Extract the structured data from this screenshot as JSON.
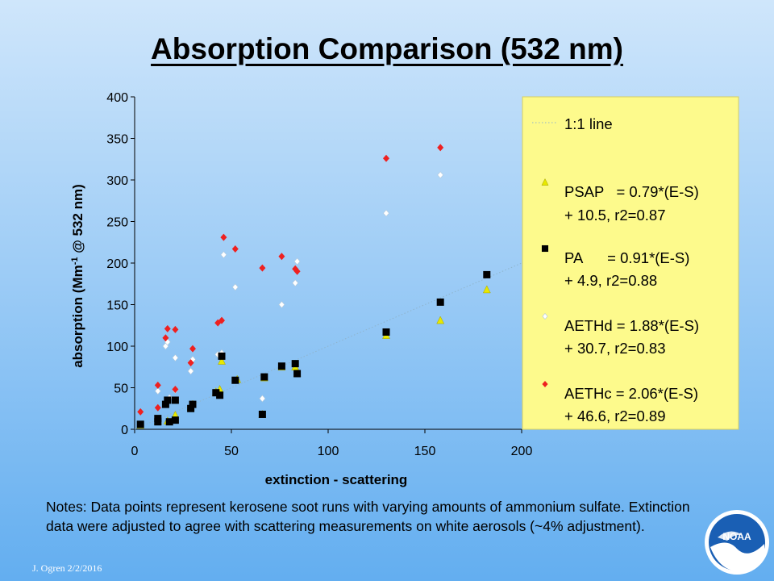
{
  "slide": {
    "title": "Absorption Comparison (532 nm)",
    "notes": "Notes:  Data points represent kerosene soot runs with varying amounts of ammonium sulfate.  Extinction data were adjusted to agree with scattering measurements on white aerosols (~4% adjustment).",
    "author": "J. Ogren  2/2/2016",
    "logo_text": "NOAA"
  },
  "chart_data": {
    "type": "scatter",
    "xlabel": "extinction - scattering",
    "ylabel_main": "absorption (Mm",
    "ylabel_sup": "-1",
    "ylabel_tail": " @ 532 nm)",
    "xlim": [
      0,
      200
    ],
    "ylim": [
      0,
      400
    ],
    "xticks": [
      "0",
      "50",
      "100",
      "150",
      "200"
    ],
    "yticks": [
      "0",
      "50",
      "100",
      "150",
      "200",
      "250",
      "300",
      "350",
      "400"
    ],
    "grid": false,
    "legend_position": "right",
    "reference_line": {
      "name": "1:1 line",
      "slope": 1,
      "intercept": 0,
      "color": "#8fb4cc"
    },
    "series": [
      {
        "name": "PSAP",
        "legend_line1": "PSAP   = 0.79*(E-S)",
        "legend_line2": "+ 10.5, r2=0.87",
        "marker": "triangle",
        "color": "#e8e800",
        "points": [
          [
            3,
            5
          ],
          [
            12,
            10
          ],
          [
            17,
            10
          ],
          [
            21,
            17
          ],
          [
            29,
            27
          ],
          [
            30,
            30
          ],
          [
            42,
            45
          ],
          [
            44,
            48
          ],
          [
            45,
            82
          ],
          [
            53,
            60
          ],
          [
            66,
            18
          ],
          [
            67,
            62
          ],
          [
            76,
            75
          ],
          [
            83,
            75
          ],
          [
            84,
            67
          ],
          [
            130,
            113
          ],
          [
            158,
            131
          ],
          [
            182,
            168
          ]
        ]
      },
      {
        "name": "PA",
        "legend_line1": "PA      = 0.91*(E-S)",
        "legend_line2": "+ 4.9, r2=0.88",
        "marker": "square",
        "color": "#000000",
        "points": [
          [
            3,
            6
          ],
          [
            12,
            9
          ],
          [
            12,
            13
          ],
          [
            16,
            30
          ],
          [
            17,
            35
          ],
          [
            18,
            9
          ],
          [
            21,
            11
          ],
          [
            21,
            35
          ],
          [
            29,
            25
          ],
          [
            30,
            30
          ],
          [
            42,
            44
          ],
          [
            44,
            41
          ],
          [
            45,
            88
          ],
          [
            52,
            59
          ],
          [
            66,
            18
          ],
          [
            67,
            63
          ],
          [
            76,
            76
          ],
          [
            83,
            79
          ],
          [
            84,
            67
          ],
          [
            130,
            117
          ],
          [
            158,
            153
          ],
          [
            182,
            186
          ]
        ]
      },
      {
        "name": "AETHd",
        "legend_line1": "AETHd = 1.88*(E-S)",
        "legend_line2": "+ 30.7, r2=0.83",
        "marker": "diamond-open",
        "color": "#ffffff",
        "points": [
          [
            12,
            46
          ],
          [
            16,
            100
          ],
          [
            17,
            105
          ],
          [
            18,
            38
          ],
          [
            21,
            86
          ],
          [
            21,
            47
          ],
          [
            29,
            70
          ],
          [
            30,
            84
          ],
          [
            43,
            90
          ],
          [
            45,
            92
          ],
          [
            46,
            210
          ],
          [
            52,
            171
          ],
          [
            66,
            37
          ],
          [
            76,
            150
          ],
          [
            83,
            176
          ],
          [
            84,
            202
          ],
          [
            130,
            260
          ],
          [
            158,
            306
          ]
        ]
      },
      {
        "name": "AETHc",
        "legend_line1": "AETHc = 2.06*(E-S)",
        "legend_line2": "+ 46.6, r2=0.89",
        "marker": "diamond",
        "color": "#ee2020",
        "points": [
          [
            3,
            21
          ],
          [
            12,
            26
          ],
          [
            12,
            53
          ],
          [
            16,
            110
          ],
          [
            17,
            121
          ],
          [
            17,
            35
          ],
          [
            21,
            120
          ],
          [
            21,
            48
          ],
          [
            29,
            80
          ],
          [
            30,
            97
          ],
          [
            43,
            128
          ],
          [
            45,
            131
          ],
          [
            46,
            231
          ],
          [
            52,
            217
          ],
          [
            66,
            194
          ],
          [
            76,
            208
          ],
          [
            83,
            193
          ],
          [
            84,
            190
          ],
          [
            130,
            326
          ],
          [
            158,
            339
          ]
        ]
      }
    ]
  }
}
